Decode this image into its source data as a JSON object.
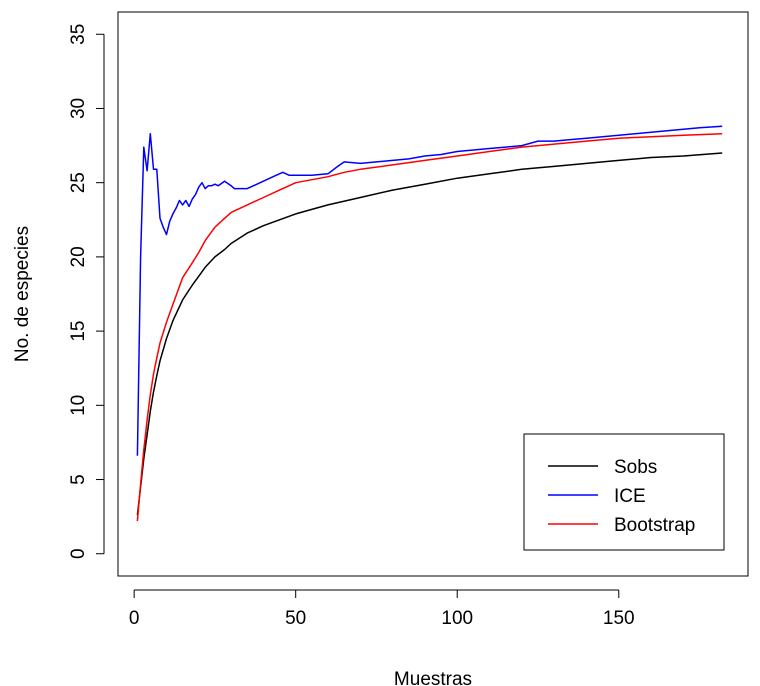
{
  "chart_data": {
    "type": "line",
    "title": "",
    "xlabel": "Muestras",
    "ylabel": "No. de especies",
    "xlim": [
      -5,
      190
    ],
    "ylim": [
      -1.5,
      36.5
    ],
    "xticks": [
      0,
      50,
      100,
      150
    ],
    "yticks": [
      0,
      5,
      10,
      15,
      20,
      25,
      30,
      35
    ],
    "grid": false,
    "legend_position": "bottom-right",
    "series": [
      {
        "name": "Sobs",
        "color": "#000000",
        "x": [
          1,
          2,
          3,
          4,
          5,
          6,
          7,
          8,
          10,
          12,
          15,
          18,
          20,
          22,
          25,
          28,
          30,
          35,
          40,
          45,
          50,
          55,
          60,
          70,
          80,
          90,
          100,
          110,
          120,
          130,
          140,
          150,
          160,
          170,
          182
        ],
        "y": [
          2.6,
          4.5,
          6.4,
          8.0,
          9.6,
          10.9,
          12.0,
          13.0,
          14.5,
          15.7,
          17.1,
          18.1,
          18.7,
          19.3,
          20.0,
          20.5,
          20.9,
          21.6,
          22.1,
          22.5,
          22.9,
          23.2,
          23.5,
          24.0,
          24.5,
          24.9,
          25.3,
          25.6,
          25.9,
          26.1,
          26.3,
          26.5,
          26.7,
          26.8,
          27.0
        ]
      },
      {
        "name": "ICE",
        "color": "#0000ff",
        "x": [
          1,
          2,
          3,
          4,
          5,
          6,
          7,
          8,
          9,
          10,
          11,
          12,
          13,
          14,
          15,
          16,
          17,
          18,
          19,
          20,
          21,
          22,
          23,
          24,
          25,
          26,
          28,
          30,
          31,
          33,
          35,
          38,
          40,
          43,
          46,
          48,
          50,
          55,
          60,
          63,
          65,
          70,
          75,
          80,
          85,
          90,
          95,
          100,
          105,
          110,
          115,
          120,
          125,
          130,
          135,
          140,
          145,
          150,
          155,
          160,
          165,
          170,
          175,
          182
        ],
        "y": [
          6.6,
          20.0,
          27.4,
          25.8,
          28.3,
          25.9,
          25.9,
          22.6,
          22.0,
          21.5,
          22.4,
          22.9,
          23.3,
          23.8,
          23.5,
          23.8,
          23.4,
          23.9,
          24.2,
          24.7,
          25.0,
          24.6,
          24.8,
          24.8,
          24.9,
          24.8,
          25.1,
          24.8,
          24.6,
          24.6,
          24.6,
          24.9,
          25.1,
          25.4,
          25.7,
          25.5,
          25.5,
          25.5,
          25.6,
          26.1,
          26.4,
          26.3,
          26.4,
          26.5,
          26.6,
          26.8,
          26.9,
          27.1,
          27.2,
          27.3,
          27.4,
          27.5,
          27.8,
          27.8,
          27.9,
          28.0,
          28.1,
          28.2,
          28.3,
          28.4,
          28.5,
          28.6,
          28.7,
          28.8
        ]
      },
      {
        "name": "Bootstrap",
        "color": "#ff0000",
        "x": [
          1,
          2,
          3,
          4,
          5,
          6,
          7,
          8,
          10,
          12,
          15,
          18,
          20,
          22,
          25,
          28,
          30,
          35,
          40,
          45,
          50,
          55,
          60,
          65,
          70,
          80,
          90,
          100,
          110,
          120,
          130,
          140,
          150,
          160,
          170,
          182
        ],
        "y": [
          2.2,
          4.7,
          7.0,
          9.0,
          10.7,
          12.1,
          13.2,
          14.2,
          15.6,
          16.8,
          18.6,
          19.6,
          20.3,
          21.1,
          22.0,
          22.6,
          23.0,
          23.5,
          24.0,
          24.5,
          25.0,
          25.2,
          25.4,
          25.7,
          25.9,
          26.2,
          26.5,
          26.8,
          27.1,
          27.4,
          27.6,
          27.8,
          28.0,
          28.1,
          28.2,
          28.3
        ]
      }
    ]
  }
}
